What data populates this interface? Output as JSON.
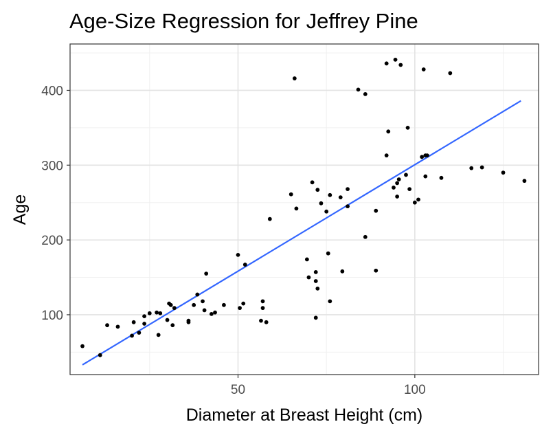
{
  "chart_data": {
    "type": "scatter",
    "title": "Age-Size Regression for Jeffrey Pine",
    "xlabel": "Diameter at Breast Height (cm)",
    "ylabel": "Age",
    "xlim": [
      2.5,
      135
    ],
    "ylim": [
      20,
      462
    ],
    "x_ticks": [
      50,
      100
    ],
    "y_ticks": [
      100,
      200,
      300,
      400
    ],
    "x_tick_labels": [
      "50",
      "100"
    ],
    "y_tick_labels": [
      "100",
      "200",
      "300",
      "400"
    ],
    "grid": true,
    "points": [
      {
        "x": 6,
        "y": 58
      },
      {
        "x": 11,
        "y": 46
      },
      {
        "x": 13,
        "y": 86
      },
      {
        "x": 16,
        "y": 84
      },
      {
        "x": 20,
        "y": 72
      },
      {
        "x": 20.5,
        "y": 90
      },
      {
        "x": 22,
        "y": 76
      },
      {
        "x": 23.5,
        "y": 88
      },
      {
        "x": 23.5,
        "y": 98
      },
      {
        "x": 25,
        "y": 102
      },
      {
        "x": 27,
        "y": 103
      },
      {
        "x": 27.5,
        "y": 73
      },
      {
        "x": 28,
        "y": 102
      },
      {
        "x": 30,
        "y": 93
      },
      {
        "x": 30.5,
        "y": 115
      },
      {
        "x": 31,
        "y": 113
      },
      {
        "x": 31.5,
        "y": 86
      },
      {
        "x": 32,
        "y": 109
      },
      {
        "x": 36,
        "y": 92
      },
      {
        "x": 36,
        "y": 90
      },
      {
        "x": 37.5,
        "y": 113
      },
      {
        "x": 38.5,
        "y": 127
      },
      {
        "x": 40,
        "y": 118
      },
      {
        "x": 40.5,
        "y": 106
      },
      {
        "x": 41,
        "y": 155
      },
      {
        "x": 42.5,
        "y": 101
      },
      {
        "x": 43.5,
        "y": 103
      },
      {
        "x": 46,
        "y": 113
      },
      {
        "x": 50,
        "y": 180
      },
      {
        "x": 50.5,
        "y": 109
      },
      {
        "x": 51.5,
        "y": 115
      },
      {
        "x": 52,
        "y": 167
      },
      {
        "x": 56.5,
        "y": 92
      },
      {
        "x": 57,
        "y": 118
      },
      {
        "x": 57,
        "y": 109
      },
      {
        "x": 58,
        "y": 90
      },
      {
        "x": 59,
        "y": 228
      },
      {
        "x": 65,
        "y": 261
      },
      {
        "x": 66,
        "y": 416
      },
      {
        "x": 66.5,
        "y": 242
      },
      {
        "x": 69.5,
        "y": 174
      },
      {
        "x": 70,
        "y": 150
      },
      {
        "x": 71,
        "y": 277
      },
      {
        "x": 72,
        "y": 157
      },
      {
        "x": 72,
        "y": 145
      },
      {
        "x": 72,
        "y": 96
      },
      {
        "x": 72.5,
        "y": 267
      },
      {
        "x": 72.5,
        "y": 135
      },
      {
        "x": 73.5,
        "y": 249
      },
      {
        "x": 75,
        "y": 238
      },
      {
        "x": 75.5,
        "y": 182
      },
      {
        "x": 76,
        "y": 260
      },
      {
        "x": 76,
        "y": 118
      },
      {
        "x": 79,
        "y": 257
      },
      {
        "x": 79.5,
        "y": 158
      },
      {
        "x": 81,
        "y": 268
      },
      {
        "x": 81,
        "y": 245
      },
      {
        "x": 84,
        "y": 401
      },
      {
        "x": 86,
        "y": 395
      },
      {
        "x": 86,
        "y": 204
      },
      {
        "x": 89,
        "y": 239
      },
      {
        "x": 89,
        "y": 159
      },
      {
        "x": 92,
        "y": 436
      },
      {
        "x": 92,
        "y": 313
      },
      {
        "x": 92.5,
        "y": 345
      },
      {
        "x": 94,
        "y": 270
      },
      {
        "x": 94.5,
        "y": 441
      },
      {
        "x": 95,
        "y": 258
      },
      {
        "x": 95,
        "y": 276
      },
      {
        "x": 95.5,
        "y": 281
      },
      {
        "x": 96,
        "y": 434
      },
      {
        "x": 97.5,
        "y": 287
      },
      {
        "x": 98,
        "y": 350
      },
      {
        "x": 98.5,
        "y": 268
      },
      {
        "x": 100,
        "y": 250
      },
      {
        "x": 101,
        "y": 254
      },
      {
        "x": 102,
        "y": 311
      },
      {
        "x": 102.5,
        "y": 428
      },
      {
        "x": 103,
        "y": 313
      },
      {
        "x": 103,
        "y": 285
      },
      {
        "x": 103.5,
        "y": 313
      },
      {
        "x": 107.5,
        "y": 283
      },
      {
        "x": 110,
        "y": 423
      },
      {
        "x": 116,
        "y": 296
      },
      {
        "x": 119,
        "y": 297
      },
      {
        "x": 125,
        "y": 290
      },
      {
        "x": 131,
        "y": 279
      }
    ],
    "regression_line": {
      "x": [
        6,
        130
      ],
      "y": [
        33,
        386
      ],
      "color": "#3366ff"
    },
    "point_color": "#000000"
  }
}
